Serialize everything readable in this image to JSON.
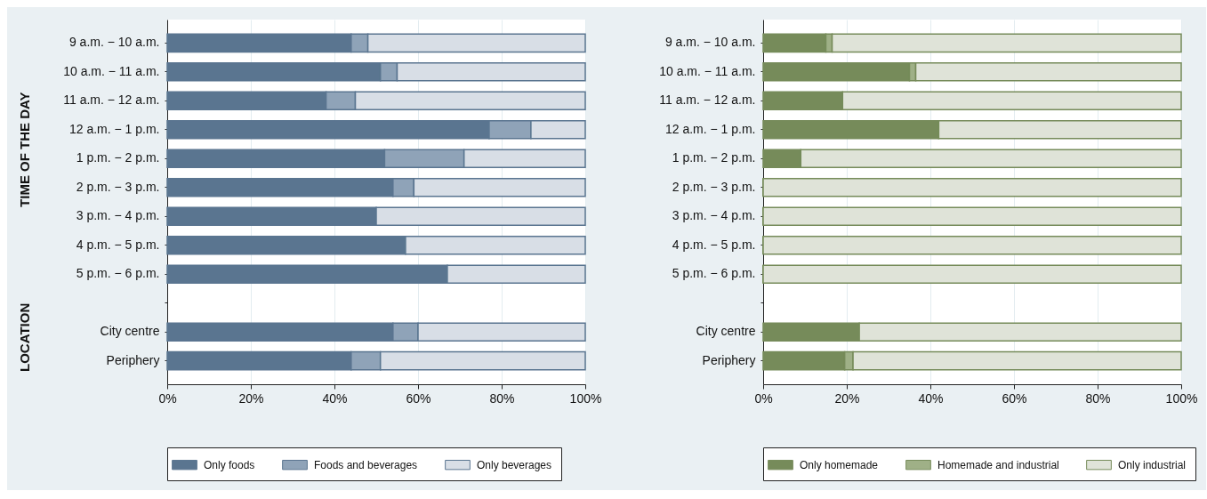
{
  "chart_data": [
    {
      "type": "bar",
      "orientation": "horizontal",
      "stacked": true,
      "categories": [
        "9 a.m. − 10 a.m.",
        "10 a.m. − 11 a.m.",
        "11 a.m. − 12 a.m.",
        "12 a.m. − 1 p.m.",
        "1 p.m. − 2 p.m.",
        "2 p.m. − 3 p.m.",
        "3 p.m. − 4 p.m.",
        "4 p.m. − 5 p.m.",
        "5 p.m. − 6 p.m.",
        null,
        "City centre",
        "Periphery"
      ],
      "series": [
        {
          "name": "Only foods",
          "color": "#5a7590",
          "values": [
            44,
            51,
            38,
            77,
            52,
            54,
            50,
            57,
            67,
            null,
            54,
            44
          ]
        },
        {
          "name": "Foods and beverages",
          "color": "#8fa3b8",
          "values": [
            4,
            4,
            7,
            10,
            19,
            5,
            0,
            0,
            0,
            null,
            6,
            7
          ]
        },
        {
          "name": "Only beverages",
          "color": "#d8dee6",
          "values": [
            52,
            45,
            55,
            13,
            29,
            41,
            50,
            43,
            33,
            null,
            40,
            49
          ]
        }
      ],
      "xlim": [
        0,
        100
      ],
      "xticks": [
        {
          "value": 0,
          "label": "0%"
        },
        {
          "value": 20,
          "label": "20%"
        },
        {
          "value": 40,
          "label": "40%"
        },
        {
          "value": 60,
          "label": "60%"
        },
        {
          "value": 80,
          "label": "80%"
        },
        {
          "value": 100,
          "label": "100%"
        }
      ],
      "grid": "x",
      "legend": "bottom",
      "annotations": [
        "TIME OF THE DAY",
        "LOCATION"
      ]
    },
    {
      "type": "bar",
      "orientation": "horizontal",
      "stacked": true,
      "categories": [
        "9 a.m. − 10 a.m.",
        "10 a.m. − 11 a.m.",
        "11 a.m. − 12 a.m.",
        "12 a.m. − 1 p.m.",
        "1 p.m. − 2 p.m.",
        "2 p.m. − 3 p.m.",
        "3 p.m. − 4 p.m.",
        "4 p.m. − 5 p.m.",
        "5 p.m. − 6 p.m.",
        null,
        "City centre",
        "Periphery"
      ],
      "series": [
        {
          "name": "Only homemade",
          "color": "#768b5a",
          "values": [
            15,
            35,
            19,
            42,
            9,
            0,
            0,
            0,
            0,
            null,
            23,
            19.5
          ]
        },
        {
          "name": "Homemade and industrial",
          "color": "#9fb087",
          "values": [
            1.5,
            1.5,
            0,
            0,
            0,
            0,
            0,
            0,
            0,
            null,
            0,
            2
          ]
        },
        {
          "name": "Only industrial",
          "color": "#dfe3d8",
          "values": [
            83.5,
            63.5,
            81,
            58,
            91,
            100,
            100,
            100,
            100,
            null,
            77,
            78.5
          ]
        }
      ],
      "xlim": [
        0,
        100
      ],
      "xticks": [
        {
          "value": 0,
          "label": "0%"
        },
        {
          "value": 20,
          "label": "20%"
        },
        {
          "value": 40,
          "label": "40%"
        },
        {
          "value": 60,
          "label": "60%"
        },
        {
          "value": 80,
          "label": "80%"
        },
        {
          "value": 100,
          "label": "100%"
        }
      ],
      "grid": "x",
      "legend": "bottom"
    }
  ]
}
